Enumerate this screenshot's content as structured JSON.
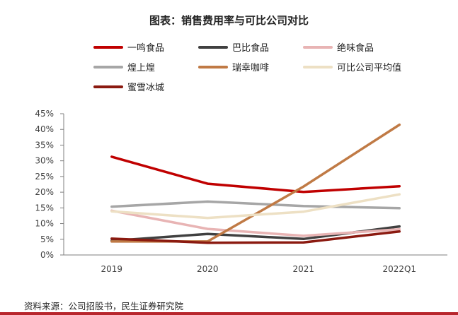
{
  "chart_data": {
    "type": "line",
    "title": "图表：销售费用率与可比公司对比",
    "categories": [
      "2019",
      "2020",
      "2021",
      "2022Q1"
    ],
    "yticks": [
      "0%",
      "5%",
      "10%",
      "15%",
      "20%",
      "25%",
      "30%",
      "35%",
      "40%",
      "45%"
    ],
    "ylim": [
      0,
      45
    ],
    "xlabel": "",
    "ylabel": "",
    "grid": false,
    "legend_position": "top",
    "series": [
      {
        "name": "一鸣食品",
        "color": "#c00000",
        "values": [
          31.3,
          22.7,
          20.1,
          21.9
        ]
      },
      {
        "name": "巴比食品",
        "color": "#404040",
        "values": [
          4.5,
          6.7,
          5.1,
          9.1
        ]
      },
      {
        "name": "绝味食品",
        "color": "#e8b4b4",
        "values": [
          14.1,
          8.3,
          6.1,
          8.2
        ]
      },
      {
        "name": "煌上煌",
        "color": "#a6a6a6",
        "values": [
          15.4,
          17.0,
          15.6,
          14.9
        ]
      },
      {
        "name": "瑞幸咖啡",
        "color": "#c07a45",
        "values": [
          4.3,
          4.3,
          21.8,
          41.5
        ]
      },
      {
        "name": "可比公司平均值",
        "color": "#ede0c4",
        "values": [
          13.9,
          11.8,
          13.8,
          19.3
        ]
      },
      {
        "name": "蜜雪冰城",
        "color": "#8b1a10",
        "values": [
          5.2,
          3.9,
          4.0,
          7.5
        ]
      }
    ]
  },
  "source_text": "资料来源：公司招股书，民生证券研究院"
}
